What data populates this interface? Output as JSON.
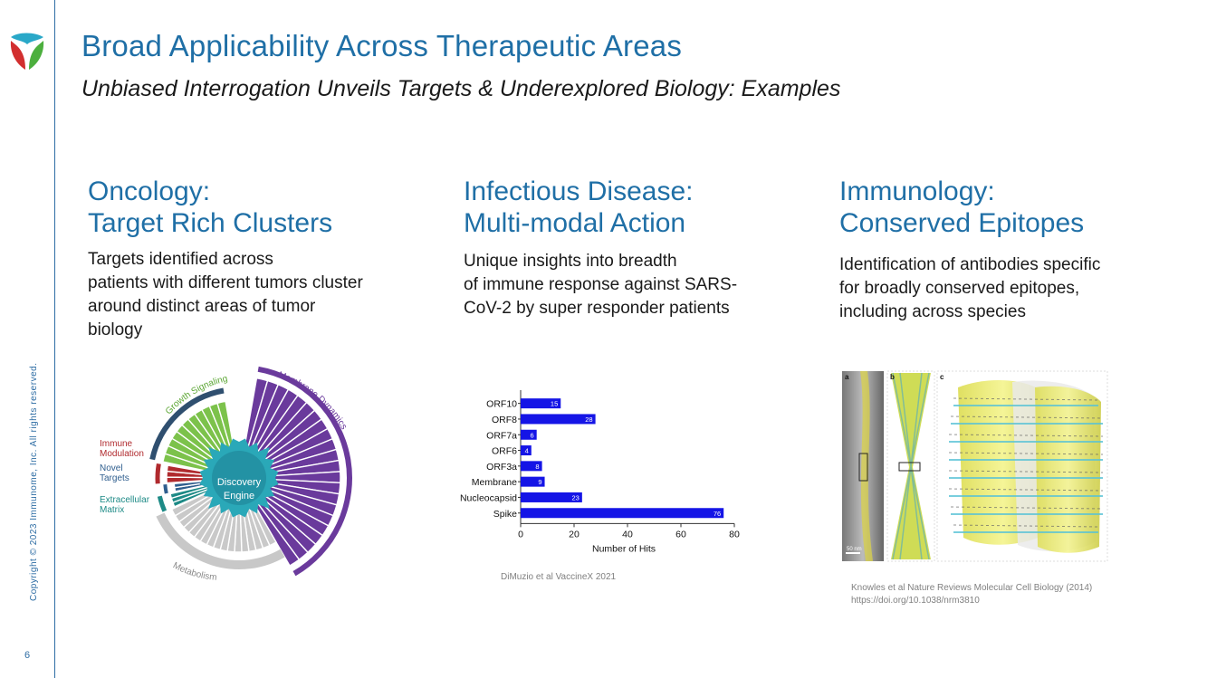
{
  "slide": {
    "title": "Broad Applicability Across Therapeutic Areas",
    "subtitle": "Unbiased Interrogation Unveils Targets & Underexplored Biology: Examples",
    "copyright": "Copyright © 2023 Immunome, Inc. All rights reserved.",
    "page_number": "6"
  },
  "columns": [
    {
      "heading": [
        "Oncology:",
        "Target Rich Clusters"
      ],
      "text": [
        "Targets identified across",
        "patients with different tumors cluster",
        "around distinct areas of tumor",
        "biology"
      ]
    },
    {
      "heading": [
        "Infectious Disease:",
        "Multi-modal Action"
      ],
      "text": [
        "Unique insights into breadth",
        "of immune response against SARS-",
        "CoV-2 by super responder patients"
      ]
    },
    {
      "heading": [
        "Immunology:",
        "Conserved Epitopes"
      ],
      "text": [
        "Identification of antibodies specific",
        "for broadly conserved epitopes,",
        "including across species"
      ]
    }
  ],
  "oncology_figure": {
    "center_label": [
      "Discovery",
      "Engine"
    ],
    "labels": {
      "growth": "Growth Signaling",
      "membrane": "Membrane Dynamics",
      "metabolism": "Metabolism",
      "immune": [
        "Immune",
        "Modulation"
      ],
      "novel": [
        "Novel",
        "Targets"
      ],
      "extracellular": [
        "Extracellular",
        "Matrix"
      ]
    },
    "colors": {
      "growth": "#7cc24b",
      "membrane": "#6a3a9c",
      "metabolism": "#c9c9c9",
      "immune": "#b02a2e",
      "novel": "#2f5e8e",
      "extracellular": "#1d8a86",
      "core": "#2aa8b8"
    }
  },
  "chart_data": {
    "type": "bar",
    "orientation": "horizontal",
    "categories": [
      "ORF10",
      "ORF8",
      "ORF7a",
      "ORF6",
      "ORF3a",
      "Membrane",
      "Nucleocapsid",
      "Spike"
    ],
    "values": [
      15,
      28,
      6,
      4,
      8,
      9,
      23,
      76
    ],
    "xlabel": "Number of Hits",
    "ylabel": "",
    "xlim": [
      0,
      80
    ],
    "xticks": [
      "0",
      "20",
      "40",
      "60",
      "80"
    ],
    "bar_color": "#1515e6",
    "grid": false,
    "legend": "none"
  },
  "captions": {
    "infectious": "DiMuzio et al VaccineX 2021",
    "immunology": [
      "Knowles et al Nature Reviews Molecular Cell Biology (2014)",
      "https://doi.org/10.1038/nrm3810"
    ]
  },
  "immunology_figure": {
    "panel_labels": [
      "a",
      "b",
      "c"
    ],
    "scale_bar": "50 nm"
  }
}
